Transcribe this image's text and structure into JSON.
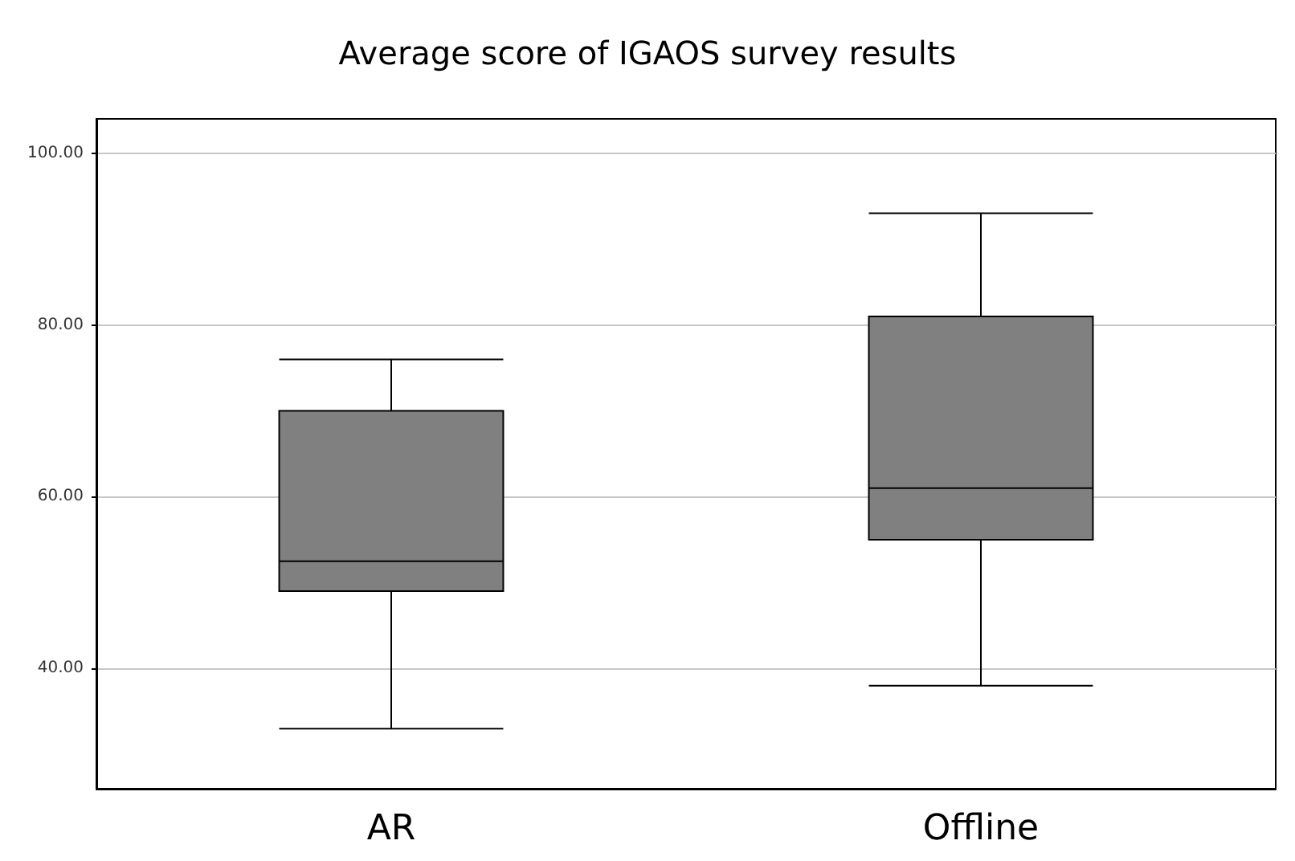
{
  "chart_data": {
    "type": "box",
    "title": "Average score of IGAOS survey results",
    "categories": [
      "AR",
      "Offline"
    ],
    "boxes": [
      {
        "low": 33,
        "q1": 49,
        "median": 52.5,
        "q3": 70,
        "high": 76
      },
      {
        "low": 38,
        "q1": 55,
        "median": 61,
        "q3": 81,
        "high": 93
      }
    ],
    "color": "#808080",
    "ylim": [
      26,
      104
    ],
    "yticks": [
      {
        "value": 40,
        "label": "40.00"
      },
      {
        "value": 60,
        "label": "60.00"
      },
      {
        "value": 80,
        "label": "80.00"
      },
      {
        "value": 100,
        "label": "100.00"
      }
    ],
    "grid": "y"
  }
}
